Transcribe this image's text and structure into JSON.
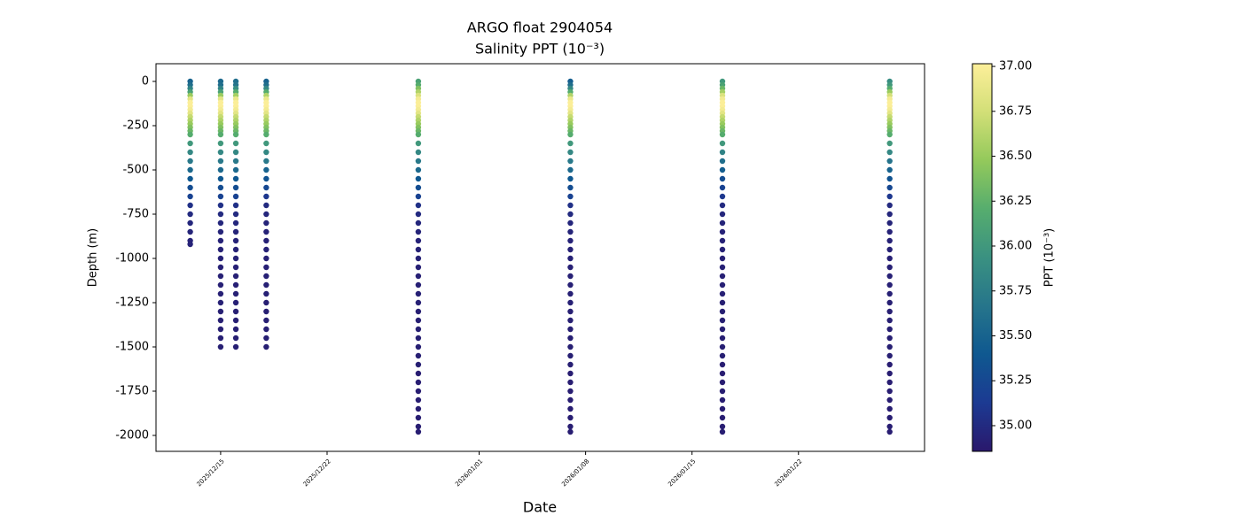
{
  "chart_data": {
    "type": "scatter",
    "title": "ARGO float 2904054",
    "subtitle": "Salinity PPT (10⁻³)",
    "xlabel": "Date",
    "ylabel": "Depth (m)",
    "colorbar_label": "PPT (10⁻³)",
    "xlim": [
      "2025-12-10T18:00",
      "2026-01-30T07:00"
    ],
    "xticks": [
      {
        "value": "2025-12-15",
        "label": "2025/12/15"
      },
      {
        "value": "2025-12-22",
        "label": "2025/12/22"
      },
      {
        "value": "2026-01-01",
        "label": "2026/01/01"
      },
      {
        "value": "2026-01-08",
        "label": "2026/01/08"
      },
      {
        "value": "2026-01-15",
        "label": "2026/01/15"
      },
      {
        "value": "2026-01-22",
        "label": "2026/01/22"
      }
    ],
    "ylim": [
      -2090,
      100
    ],
    "yticks": [
      0,
      -250,
      -500,
      -750,
      -1000,
      -1250,
      -1500,
      -1750,
      -2000
    ],
    "clim": [
      34.857,
      37.015
    ],
    "cticks": [
      {
        "value": 35.0,
        "label": "35.00"
      },
      {
        "value": 35.25,
        "label": "35.25"
      },
      {
        "value": 35.5,
        "label": "35.50"
      },
      {
        "value": 35.75,
        "label": "35.75"
      },
      {
        "value": 36.0,
        "label": "36.00"
      },
      {
        "value": 36.25,
        "label": "36.25"
      },
      {
        "value": 36.5,
        "label": "36.50"
      },
      {
        "value": 36.75,
        "label": "36.75"
      },
      {
        "value": 37.0,
        "label": "37.00"
      }
    ],
    "colormap": [
      "#2a186c",
      "#1c3a92",
      "#0f5890",
      "#26758b",
      "#3a9181",
      "#56ad6e",
      "#93c95b",
      "#d2df77",
      "#fdef9a"
    ],
    "profiles": [
      {
        "x": "2025-12-13",
        "depth": [
          0,
          -20,
          -40,
          -60,
          -80,
          -100,
          -120,
          -140,
          -160,
          -180,
          -200,
          -220,
          -240,
          -260,
          -280,
          -300,
          -350,
          -400,
          -450,
          -500,
          -550,
          -600,
          -650,
          -700,
          -750,
          -800,
          -850,
          -900,
          -920
        ],
        "salinity": [
          35.5,
          35.6,
          35.8,
          36.1,
          36.5,
          36.85,
          37.0,
          37.0,
          36.95,
          36.85,
          36.7,
          36.6,
          36.5,
          36.4,
          36.3,
          36.2,
          36.0,
          35.85,
          35.7,
          35.55,
          35.4,
          35.3,
          35.2,
          35.05,
          35.0,
          34.97,
          34.95,
          34.94,
          34.94
        ]
      },
      {
        "x": "2025-12-15",
        "depth": [
          0,
          -20,
          -40,
          -60,
          -80,
          -100,
          -120,
          -140,
          -160,
          -180,
          -200,
          -220,
          -240,
          -260,
          -280,
          -300,
          -350,
          -400,
          -450,
          -500,
          -550,
          -600,
          -650,
          -700,
          -750,
          -800,
          -850,
          -900,
          -950,
          -1000,
          -1050,
          -1100,
          -1150,
          -1200,
          -1250,
          -1300,
          -1350,
          -1400,
          -1450,
          -1500
        ],
        "salinity": [
          35.55,
          35.6,
          35.8,
          36.1,
          36.5,
          36.85,
          37.0,
          37.0,
          36.95,
          36.85,
          36.7,
          36.6,
          36.5,
          36.4,
          36.3,
          36.2,
          36.0,
          35.85,
          35.7,
          35.55,
          35.4,
          35.3,
          35.2,
          35.05,
          35.0,
          34.97,
          34.95,
          34.94,
          34.93,
          34.93,
          34.92,
          34.92,
          34.92,
          34.92,
          34.92,
          34.91,
          34.91,
          34.91,
          34.91,
          34.91
        ]
      },
      {
        "x": "2025-12-16",
        "depth": [
          0,
          -20,
          -40,
          -60,
          -80,
          -100,
          -120,
          -140,
          -160,
          -180,
          -200,
          -220,
          -240,
          -260,
          -280,
          -300,
          -350,
          -400,
          -450,
          -500,
          -550,
          -600,
          -650,
          -700,
          -750,
          -800,
          -850,
          -900,
          -950,
          -1000,
          -1050,
          -1100,
          -1150,
          -1200,
          -1250,
          -1300,
          -1350,
          -1400,
          -1450,
          -1500
        ],
        "salinity": [
          35.6,
          35.65,
          35.9,
          36.2,
          36.55,
          36.9,
          37.0,
          37.0,
          36.95,
          36.85,
          36.7,
          36.6,
          36.5,
          36.4,
          36.3,
          36.2,
          36.0,
          35.85,
          35.7,
          35.55,
          35.4,
          35.3,
          35.2,
          35.05,
          35.0,
          34.97,
          34.95,
          34.94,
          34.93,
          34.93,
          34.92,
          34.92,
          34.92,
          34.92,
          34.92,
          34.91,
          34.91,
          34.91,
          34.91,
          34.91
        ]
      },
      {
        "x": "2025-12-18",
        "depth": [
          0,
          -20,
          -40,
          -60,
          -80,
          -100,
          -120,
          -140,
          -160,
          -180,
          -200,
          -220,
          -240,
          -260,
          -280,
          -300,
          -350,
          -400,
          -450,
          -500,
          -550,
          -600,
          -650,
          -700,
          -750,
          -800,
          -850,
          -900,
          -950,
          -1000,
          -1050,
          -1100,
          -1150,
          -1200,
          -1250,
          -1300,
          -1350,
          -1400,
          -1450,
          -1500
        ],
        "salinity": [
          35.5,
          35.6,
          35.85,
          36.2,
          36.6,
          36.9,
          37.0,
          37.0,
          36.95,
          36.85,
          36.7,
          36.6,
          36.5,
          36.4,
          36.3,
          36.2,
          36.0,
          35.85,
          35.7,
          35.5,
          35.35,
          35.25,
          35.1,
          35.0,
          34.97,
          34.95,
          34.94,
          34.93,
          34.93,
          34.92,
          34.92,
          34.92,
          34.92,
          34.92,
          34.91,
          34.91,
          34.91,
          34.91,
          34.91,
          34.91
        ]
      },
      {
        "x": "2025-12-28",
        "depth": [
          0,
          -20,
          -40,
          -60,
          -80,
          -100,
          -120,
          -140,
          -160,
          -180,
          -200,
          -220,
          -240,
          -260,
          -280,
          -300,
          -350,
          -400,
          -450,
          -500,
          -550,
          -600,
          -650,
          -700,
          -750,
          -800,
          -850,
          -900,
          -950,
          -1000,
          -1050,
          -1100,
          -1150,
          -1200,
          -1250,
          -1300,
          -1350,
          -1400,
          -1450,
          -1500,
          -1550,
          -1600,
          -1650,
          -1700,
          -1750,
          -1800,
          -1850,
          -1900,
          -1950,
          -1980
        ],
        "salinity": [
          36.1,
          36.2,
          36.4,
          36.6,
          36.8,
          36.95,
          37.0,
          37.0,
          36.95,
          36.85,
          36.7,
          36.6,
          36.5,
          36.4,
          36.3,
          36.2,
          36.0,
          35.85,
          35.7,
          35.55,
          35.4,
          35.3,
          35.2,
          35.05,
          35.0,
          34.97,
          34.95,
          34.94,
          34.93,
          34.93,
          34.92,
          34.92,
          34.92,
          34.92,
          34.92,
          34.91,
          34.91,
          34.91,
          34.91,
          34.91,
          34.91,
          34.91,
          34.9,
          34.9,
          34.9,
          34.9,
          34.9,
          34.9,
          34.9,
          34.9
        ]
      },
      {
        "x": "2026-01-07",
        "depth": [
          0,
          -20,
          -40,
          -60,
          -80,
          -100,
          -120,
          -140,
          -160,
          -180,
          -200,
          -220,
          -240,
          -260,
          -280,
          -300,
          -350,
          -400,
          -450,
          -500,
          -550,
          -600,
          -650,
          -700,
          -750,
          -800,
          -850,
          -900,
          -950,
          -1000,
          -1050,
          -1100,
          -1150,
          -1200,
          -1250,
          -1300,
          -1350,
          -1400,
          -1450,
          -1500,
          -1550,
          -1600,
          -1650,
          -1700,
          -1750,
          -1800,
          -1850,
          -1900,
          -1950,
          -1980
        ],
        "salinity": [
          35.45,
          35.6,
          35.85,
          36.2,
          36.6,
          36.9,
          37.0,
          37.0,
          36.95,
          36.85,
          36.7,
          36.6,
          36.5,
          36.4,
          36.3,
          36.2,
          36.0,
          35.85,
          35.7,
          35.55,
          35.4,
          35.3,
          35.2,
          35.05,
          35.0,
          34.97,
          34.95,
          34.94,
          34.93,
          34.93,
          34.92,
          34.92,
          34.92,
          34.92,
          34.92,
          34.91,
          34.91,
          34.91,
          34.91,
          34.91,
          34.91,
          34.91,
          34.9,
          34.9,
          34.9,
          34.9,
          34.9,
          34.9,
          34.9,
          34.9
        ]
      },
      {
        "x": "2026-01-17",
        "depth": [
          0,
          -20,
          -40,
          -60,
          -80,
          -100,
          -120,
          -140,
          -160,
          -180,
          -200,
          -220,
          -240,
          -260,
          -280,
          -300,
          -350,
          -400,
          -450,
          -500,
          -550,
          -600,
          -650,
          -700,
          -750,
          -800,
          -850,
          -900,
          -950,
          -1000,
          -1050,
          -1100,
          -1150,
          -1200,
          -1250,
          -1300,
          -1350,
          -1400,
          -1450,
          -1500,
          -1550,
          -1600,
          -1650,
          -1700,
          -1750,
          -1800,
          -1850,
          -1900,
          -1950,
          -1980
        ],
        "salinity": [
          36.0,
          36.1,
          36.3,
          36.55,
          36.8,
          36.95,
          37.0,
          37.0,
          36.95,
          36.85,
          36.7,
          36.6,
          36.5,
          36.4,
          36.3,
          36.2,
          36.0,
          35.8,
          35.6,
          35.45,
          35.3,
          35.2,
          35.1,
          35.0,
          34.97,
          34.95,
          34.94,
          34.93,
          34.93,
          34.92,
          34.92,
          34.92,
          34.92,
          34.92,
          34.91,
          34.91,
          34.91,
          34.91,
          34.91,
          34.91,
          34.91,
          34.9,
          34.9,
          34.9,
          34.9,
          34.9,
          34.9,
          34.9,
          34.9,
          34.9
        ]
      },
      {
        "x": "2026-01-28",
        "depth": [
          0,
          -20,
          -40,
          -60,
          -80,
          -100,
          -120,
          -140,
          -160,
          -180,
          -200,
          -220,
          -240,
          -260,
          -280,
          -300,
          -350,
          -400,
          -450,
          -500,
          -550,
          -600,
          -650,
          -700,
          -750,
          -800,
          -850,
          -900,
          -950,
          -1000,
          -1050,
          -1100,
          -1150,
          -1200,
          -1250,
          -1300,
          -1350,
          -1400,
          -1450,
          -1500,
          -1550,
          -1600,
          -1650,
          -1700,
          -1750,
          -1800,
          -1850,
          -1900,
          -1950,
          -1980
        ],
        "salinity": [
          35.9,
          36.0,
          36.2,
          36.5,
          36.75,
          36.95,
          37.0,
          37.0,
          36.95,
          36.85,
          36.7,
          36.6,
          36.5,
          36.4,
          36.3,
          36.2,
          36.0,
          35.85,
          35.65,
          35.5,
          35.35,
          35.25,
          35.1,
          35.0,
          34.97,
          34.95,
          34.94,
          34.93,
          34.93,
          34.92,
          34.92,
          34.92,
          34.92,
          34.92,
          34.91,
          34.91,
          34.91,
          34.91,
          34.91,
          34.91,
          34.91,
          34.9,
          34.9,
          34.9,
          34.9,
          34.9,
          34.9,
          34.9,
          34.9,
          34.9
        ]
      }
    ]
  }
}
